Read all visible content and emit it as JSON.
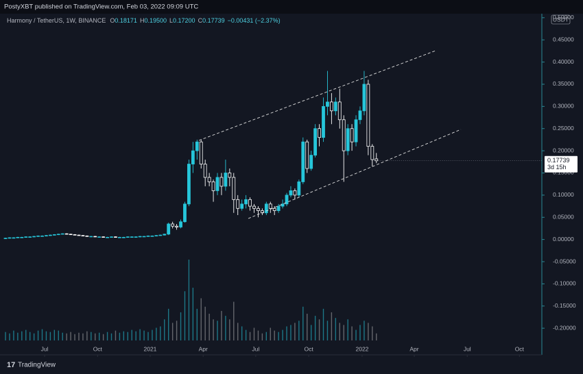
{
  "header": {
    "text": "PostyXBT published on TradingView.com, Feb 03, 2022 09:09 UTC"
  },
  "footer": {
    "text": "TradingView"
  },
  "chart_data": {
    "type": "candlestick",
    "symbol": "Harmony / TetherUS, 1W, BINANCE",
    "legend": [
      {
        "label": "O",
        "value": "0.18171"
      },
      {
        "label": "H",
        "value": "0.19500"
      },
      {
        "label": "L",
        "value": "0.17200"
      },
      {
        "label": "C",
        "value": "0.17739"
      }
    ],
    "change": "−0.00431 (−2.37%)",
    "currency": "USDT",
    "last_price": 0.17739,
    "countdown": "3d 15h",
    "up_color": "#26c6da",
    "down_color": "#ffffff",
    "open": [
      0.002,
      0.003,
      0.004,
      0.004,
      0.005,
      0.005,
      0.006,
      0.006,
      0.007,
      0.008,
      0.008,
      0.009,
      0.01,
      0.011,
      0.012,
      0.013,
      0.012,
      0.011,
      0.01,
      0.009,
      0.008,
      0.007,
      0.007,
      0.006,
      0.006,
      0.005,
      0.005,
      0.006,
      0.005,
      0.005,
      0.005,
      0.006,
      0.006,
      0.006,
      0.007,
      0.007,
      0.008,
      0.008,
      0.009,
      0.01,
      0.012,
      0.035,
      0.03,
      0.028,
      0.04,
      0.08,
      0.17,
      0.2,
      0.22,
      0.17,
      0.14,
      0.13,
      0.11,
      0.14,
      0.12,
      0.15,
      0.14,
      0.09,
      0.07,
      0.08,
      0.09,
      0.075,
      0.07,
      0.065,
      0.06,
      0.08,
      0.07,
      0.065,
      0.075,
      0.08,
      0.1,
      0.11,
      0.1,
      0.13,
      0.22,
      0.16,
      0.19,
      0.25,
      0.23,
      0.3,
      0.31,
      0.29,
      0.31,
      0.27,
      0.2,
      0.25,
      0.22,
      0.27,
      0.29,
      0.35,
      0.21,
      0.18171
    ],
    "high": [
      0.004,
      0.005,
      0.005,
      0.006,
      0.006,
      0.007,
      0.007,
      0.008,
      0.009,
      0.009,
      0.01,
      0.011,
      0.012,
      0.013,
      0.014,
      0.014,
      0.013,
      0.012,
      0.011,
      0.01,
      0.009,
      0.008,
      0.008,
      0.007,
      0.007,
      0.006,
      0.007,
      0.007,
      0.006,
      0.006,
      0.007,
      0.007,
      0.007,
      0.008,
      0.008,
      0.009,
      0.009,
      0.01,
      0.011,
      0.013,
      0.038,
      0.04,
      0.035,
      0.045,
      0.085,
      0.18,
      0.22,
      0.225,
      0.225,
      0.18,
      0.15,
      0.135,
      0.15,
      0.15,
      0.18,
      0.16,
      0.15,
      0.1,
      0.09,
      0.1,
      0.095,
      0.08,
      0.075,
      0.07,
      0.085,
      0.085,
      0.075,
      0.08,
      0.09,
      0.105,
      0.12,
      0.115,
      0.135,
      0.23,
      0.225,
      0.2,
      0.26,
      0.26,
      0.32,
      0.38,
      0.33,
      0.32,
      0.34,
      0.28,
      0.26,
      0.26,
      0.28,
      0.3,
      0.38,
      0.36,
      0.215,
      0.195
    ],
    "low": [
      0.001,
      0.002,
      0.003,
      0.003,
      0.004,
      0.004,
      0.005,
      0.005,
      0.006,
      0.007,
      0.007,
      0.008,
      0.009,
      0.01,
      0.011,
      0.011,
      0.011,
      0.01,
      0.009,
      0.008,
      0.007,
      0.006,
      0.006,
      0.005,
      0.005,
      0.004,
      0.004,
      0.004,
      0.004,
      0.004,
      0.004,
      0.005,
      0.005,
      0.005,
      0.006,
      0.006,
      0.007,
      0.007,
      0.008,
      0.009,
      0.01,
      0.025,
      0.022,
      0.025,
      0.038,
      0.075,
      0.15,
      0.18,
      0.16,
      0.12,
      0.12,
      0.085,
      0.1,
      0.1,
      0.11,
      0.12,
      0.06,
      0.055,
      0.065,
      0.07,
      0.065,
      0.06,
      0.05,
      0.055,
      0.055,
      0.06,
      0.055,
      0.06,
      0.07,
      0.075,
      0.095,
      0.09,
      0.095,
      0.125,
      0.15,
      0.155,
      0.185,
      0.21,
      0.22,
      0.28,
      0.26,
      0.28,
      0.25,
      0.13,
      0.19,
      0.2,
      0.21,
      0.26,
      0.28,
      0.19,
      0.165,
      0.172
    ],
    "close": [
      0.003,
      0.004,
      0.004,
      0.005,
      0.005,
      0.006,
      0.006,
      0.007,
      0.008,
      0.008,
      0.009,
      0.01,
      0.011,
      0.012,
      0.013,
      0.012,
      0.011,
      0.01,
      0.009,
      0.008,
      0.007,
      0.007,
      0.006,
      0.006,
      0.005,
      0.005,
      0.006,
      0.005,
      0.005,
      0.005,
      0.006,
      0.006,
      0.006,
      0.007,
      0.007,
      0.008,
      0.008,
      0.009,
      0.01,
      0.012,
      0.035,
      0.03,
      0.028,
      0.04,
      0.08,
      0.17,
      0.2,
      0.22,
      0.17,
      0.14,
      0.13,
      0.11,
      0.14,
      0.12,
      0.15,
      0.14,
      0.09,
      0.07,
      0.08,
      0.09,
      0.075,
      0.07,
      0.065,
      0.06,
      0.08,
      0.07,
      0.065,
      0.075,
      0.08,
      0.1,
      0.11,
      0.1,
      0.13,
      0.22,
      0.16,
      0.19,
      0.25,
      0.23,
      0.3,
      0.31,
      0.29,
      0.31,
      0.27,
      0.2,
      0.25,
      0.22,
      0.27,
      0.29,
      0.35,
      0.21,
      0.18,
      0.17739
    ],
    "volume": [
      12,
      10,
      14,
      11,
      13,
      15,
      12,
      10,
      14,
      16,
      13,
      12,
      15,
      14,
      11,
      10,
      12,
      9,
      11,
      10,
      13,
      12,
      10,
      11,
      9,
      12,
      10,
      14,
      11,
      13,
      12,
      15,
      13,
      16,
      14,
      12,
      15,
      18,
      20,
      30,
      45,
      25,
      28,
      40,
      70,
      115,
      75,
      45,
      60,
      48,
      38,
      30,
      28,
      42,
      35,
      30,
      55,
      25,
      20,
      15,
      12,
      18,
      14,
      10,
      12,
      18,
      14,
      12,
      15,
      20,
      22,
      25,
      28,
      48,
      38,
      22,
      35,
      30,
      45,
      28,
      40,
      32,
      25,
      22,
      30,
      20,
      15,
      22,
      28,
      25,
      20,
      10
    ],
    "xlim": [
      -1.35,
      131.6
    ],
    "xticks": [
      {
        "value": 9.6,
        "label": "Jul"
      },
      {
        "value": 22.6,
        "label": "Oct"
      },
      {
        "value": 35.5,
        "label": "2021"
      },
      {
        "value": 48.5,
        "label": "Apr"
      },
      {
        "value": 61.4,
        "label": "Jul"
      },
      {
        "value": 74.4,
        "label": "Oct"
      },
      {
        "value": 87.5,
        "label": "2022"
      },
      {
        "value": 100.3,
        "label": "Apr"
      },
      {
        "value": 113.3,
        "label": "Jul"
      },
      {
        "value": 126.1,
        "label": "Oct"
      }
    ],
    "ylim": [
      -0.26,
      0.509
    ],
    "yticks": [
      {
        "value": 0.5,
        "label": "0.50000"
      },
      {
        "value": 0.45,
        "label": "0.45000"
      },
      {
        "value": 0.4,
        "label": "0.40000"
      },
      {
        "value": 0.35,
        "label": "0.35000"
      },
      {
        "value": 0.3,
        "label": "0.30000"
      },
      {
        "value": 0.25,
        "label": "0.25000"
      },
      {
        "value": 0.2,
        "label": "0.20000"
      },
      {
        "value": 0.15,
        "label": "0.15000"
      },
      {
        "value": 0.1,
        "label": "0.10000"
      },
      {
        "value": 0.05,
        "label": "0.05000"
      },
      {
        "value": 0,
        "label": "0.00000"
      },
      {
        "value": -0.05,
        "label": "-0.05000"
      },
      {
        "value": -0.1,
        "label": "-0.10000"
      },
      {
        "value": -0.15,
        "label": "-0.15000"
      },
      {
        "value": -0.2,
        "label": "-0.20000"
      }
    ]
  }
}
